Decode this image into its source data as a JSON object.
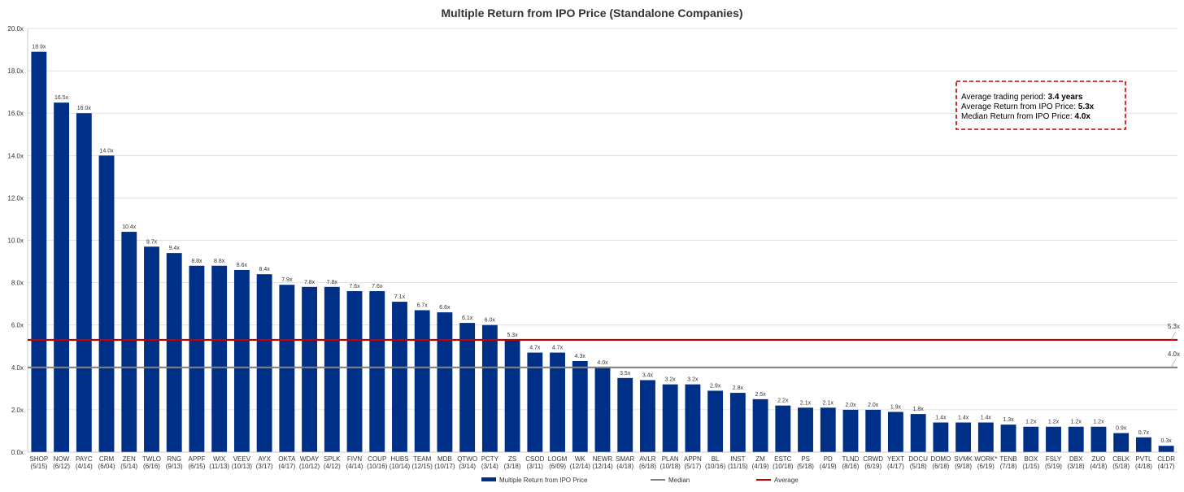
{
  "chart_data": {
    "type": "bar",
    "title": "Multiple Return from IPO Price (Standalone Companies)",
    "xlabel": "",
    "ylabel": "",
    "ylim": [
      0,
      20
    ],
    "y_ticks": [
      "0.0x",
      "2.0x",
      "4.0x",
      "6.0x",
      "8.0x",
      "10.0x",
      "12.0x",
      "14.0x",
      "16.0x",
      "18.0x",
      "20.0x"
    ],
    "y_tick_values": [
      0,
      2,
      4,
      6,
      8,
      10,
      12,
      14,
      16,
      18,
      20
    ],
    "categories": [
      {
        "ticker": "SHOP",
        "date": "(5/15)"
      },
      {
        "ticker": "NOW",
        "date": "(6/12)"
      },
      {
        "ticker": "PAYC",
        "date": "(4/14)"
      },
      {
        "ticker": "CRM",
        "date": "(6/04)"
      },
      {
        "ticker": "ZEN",
        "date": "(5/14)"
      },
      {
        "ticker": "TWLO",
        "date": "(6/16)"
      },
      {
        "ticker": "RNG",
        "date": "(9/13)"
      },
      {
        "ticker": "APPF",
        "date": "(6/15)"
      },
      {
        "ticker": "WIX",
        "date": "(11/13)"
      },
      {
        "ticker": "VEEV",
        "date": "(10/13)"
      },
      {
        "ticker": "AYX",
        "date": "(3/17)"
      },
      {
        "ticker": "OKTA",
        "date": "(4/17)"
      },
      {
        "ticker": "WDAY",
        "date": "(10/12)"
      },
      {
        "ticker": "SPLK",
        "date": "(4/12)"
      },
      {
        "ticker": "FIVN",
        "date": "(4/14)"
      },
      {
        "ticker": "COUP",
        "date": "(10/16)"
      },
      {
        "ticker": "HUBS",
        "date": "(10/14)"
      },
      {
        "ticker": "TEAM",
        "date": "(12/15)"
      },
      {
        "ticker": "MDB",
        "date": "(10/17)"
      },
      {
        "ticker": "QTWO",
        "date": "(3/14)"
      },
      {
        "ticker": "PCTY",
        "date": "(3/14)"
      },
      {
        "ticker": "ZS",
        "date": "(3/18)"
      },
      {
        "ticker": "CSOD",
        "date": "(3/11)"
      },
      {
        "ticker": "LOGM",
        "date": "(6/09)"
      },
      {
        "ticker": "WK",
        "date": "(12/14)"
      },
      {
        "ticker": "NEWR",
        "date": "(12/14)"
      },
      {
        "ticker": "SMAR",
        "date": "(4/18)"
      },
      {
        "ticker": "AVLR",
        "date": "(6/18)"
      },
      {
        "ticker": "PLAN",
        "date": "(10/18)"
      },
      {
        "ticker": "APPN",
        "date": "(5/17)"
      },
      {
        "ticker": "BL",
        "date": "(10/16)"
      },
      {
        "ticker": "INST",
        "date": "(11/15)"
      },
      {
        "ticker": "ZM",
        "date": "(4/19)"
      },
      {
        "ticker": "ESTC",
        "date": "(10/18)"
      },
      {
        "ticker": "PS",
        "date": "(5/18)"
      },
      {
        "ticker": "PD",
        "date": "(4/19)"
      },
      {
        "ticker": "TLND",
        "date": "(8/16)"
      },
      {
        "ticker": "CRWD",
        "date": "(6/19)"
      },
      {
        "ticker": "YEXT",
        "date": "(4/17)"
      },
      {
        "ticker": "DOCU",
        "date": "(5/18)"
      },
      {
        "ticker": "DOMO",
        "date": "(6/18)"
      },
      {
        "ticker": "SVMK",
        "date": "(9/18)"
      },
      {
        "ticker": "WORK*",
        "date": "(6/19)"
      },
      {
        "ticker": "TENB",
        "date": "(7/18)"
      },
      {
        "ticker": "BOX",
        "date": "(1/15)"
      },
      {
        "ticker": "FSLY",
        "date": "(5/19)"
      },
      {
        "ticker": "DBX",
        "date": "(3/18)"
      },
      {
        "ticker": "ZUO",
        "date": "(4/18)"
      },
      {
        "ticker": "CBLK",
        "date": "(5/18)"
      },
      {
        "ticker": "PVTL",
        "date": "(4/18)"
      },
      {
        "ticker": "CLDR",
        "date": "(4/17)"
      }
    ],
    "series": [
      {
        "name": "Multiple Return from IPO Price",
        "color": "#002f87",
        "values": [
          18.9,
          16.5,
          16.0,
          14.0,
          10.4,
          9.7,
          9.4,
          8.8,
          8.8,
          8.6,
          8.4,
          7.9,
          7.8,
          7.8,
          7.6,
          7.6,
          7.1,
          6.7,
          6.6,
          6.1,
          6.0,
          5.3,
          4.7,
          4.7,
          4.3,
          4.0,
          3.5,
          3.4,
          3.2,
          3.2,
          2.9,
          2.8,
          2.5,
          2.2,
          2.1,
          2.1,
          2.0,
          2.0,
          1.9,
          1.8,
          1.4,
          1.4,
          1.4,
          1.3,
          1.2,
          1.2,
          1.2,
          1.2,
          0.9,
          0.7,
          0.3
        ],
        "labels": [
          "18.9x",
          "16.5x",
          "16.0x",
          "14.0x",
          "10.4x",
          "9.7x",
          "9.4x",
          "8.8x",
          "8.8x",
          "8.6x",
          "8.4x",
          "7.9x",
          "7.8x",
          "7.8x",
          "7.6x",
          "7.6x",
          "7.1x",
          "6.7x",
          "6.6x",
          "6.1x",
          "6.0x",
          "5.3x",
          "4.7x",
          "4.7x",
          "4.3x",
          "4.0x",
          "3.5x",
          "3.4x",
          "3.2x",
          "3.2x",
          "2.9x",
          "2.8x",
          "2.5x",
          "2.2x",
          "2.1x",
          "2.1x",
          "2.0x",
          "2.0x",
          "1.9x",
          "1.8x",
          "1.4x",
          "1.4x",
          "1.4x",
          "1.3x",
          "1.2x",
          "1.2x",
          "1.2x",
          "1.2x",
          "0.9x",
          "0.7x",
          "0.3x"
        ]
      }
    ],
    "reference_lines": [
      {
        "name": "Median",
        "value": 4.0,
        "label": "4.0x",
        "color": "#808080"
      },
      {
        "name": "Average",
        "value": 5.3,
        "label": "5.3x",
        "color": "#c00000"
      }
    ],
    "legend": {
      "position": "bottom",
      "entries": [
        {
          "name": "Multiple Return from IPO Price",
          "color": "#002f87",
          "kind": "bar"
        },
        {
          "name": "Median",
          "color": "#808080",
          "kind": "line"
        },
        {
          "name": "Average",
          "color": "#c00000",
          "kind": "line"
        }
      ]
    },
    "annotation": {
      "lines": [
        {
          "text": "Average trading period: ",
          "bold": "3.4 years"
        },
        {
          "text": "Average Return from IPO Price: ",
          "bold": "5.3x"
        },
        {
          "text": "Median Return from IPO Price: ",
          "bold": "4.0x"
        }
      ],
      "border_color": "#c00000"
    },
    "grid": true
  }
}
